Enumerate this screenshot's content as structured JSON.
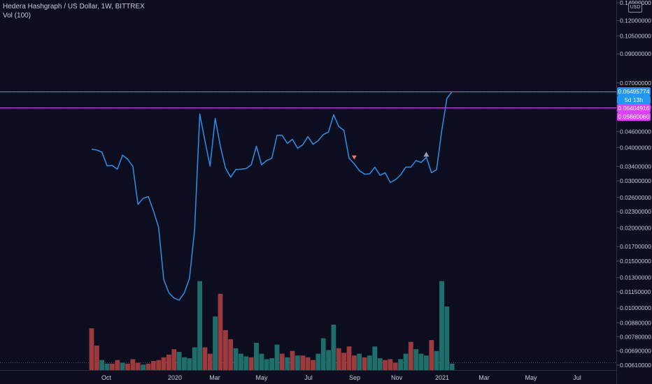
{
  "header": {
    "symbol_line": "Hedera Hashgraph / US Dollar, 1W, BITTREX",
    "volume_line": "Vol (100)",
    "currency_badge": "USD"
  },
  "chart_data": {
    "type": "line",
    "title": "Hedera Hashgraph / US Dollar, 1W, BITTREX",
    "price_axis_ticks": [
      0.14,
      0.12,
      0.105,
      0.09,
      0.07,
      0.064,
      0.0566,
      0.046,
      0.04,
      0.034,
      0.03,
      0.026,
      0.023,
      0.02,
      0.017,
      0.015,
      0.013,
      0.0115,
      0.01,
      0.0088,
      0.0078,
      0.0069,
      0.0061
    ],
    "price_axis_labels": [
      "0.14000000",
      "0.12000000",
      "0.10500000",
      "0.09000000",
      "0.07000000",
      "0.06",
      "0.05660060",
      "0.04600000",
      "0.04000000",
      "0.03400000",
      "0.03000000",
      "0.02600000",
      "0.02300000",
      "0.02000000",
      "0.01700000",
      "0.01500000",
      "0.01300000",
      "0.01150000",
      "0.01000000",
      "0.00880000",
      "0.00780000",
      "0.00690000",
      "0.00610000"
    ],
    "time_axis_labels": [
      "Oct",
      "2020",
      "Mar",
      "May",
      "Jul",
      "Sep",
      "Nov",
      "2021",
      "Mar",
      "May",
      "Jul"
    ],
    "price_labels": [
      {
        "text": "0.06495774",
        "value": 0.06495774,
        "color": "#2196f3"
      },
      {
        "text": "5d 13h",
        "value": 0.0615,
        "color": "#2196f3"
      },
      {
        "text": "0.06404916",
        "value": 0.06404916,
        "color": "#e040fb"
      },
      {
        "text": "0.05660060",
        "value": 0.0566006,
        "color": "#e040fb"
      }
    ],
    "horizontal_lines": [
      {
        "value": 0.06495774,
        "color": "#e040fb"
      },
      {
        "value": 0.0566006,
        "color": "#e040fb"
      }
    ],
    "series": [
      {
        "values": [
          0.0395,
          0.0392,
          0.0385,
          0.0342,
          0.0343,
          0.0332,
          0.0375,
          0.0362,
          0.034,
          0.0245,
          0.0258,
          0.0262,
          0.0232,
          0.0201,
          0.0128,
          0.0114,
          0.0109,
          0.0107,
          0.0114,
          0.0129,
          0.0197,
          0.0535,
          0.0425,
          0.0341,
          0.0515,
          0.0405,
          0.0335,
          0.031,
          0.0331,
          0.0332,
          0.0334,
          0.0345,
          0.0405,
          0.0345,
          0.0358,
          0.0365,
          0.0445,
          0.0445,
          0.0415,
          0.043,
          0.0398,
          0.041,
          0.044,
          0.0412,
          0.0425,
          0.0448,
          0.0458,
          0.0532,
          0.048,
          0.0465,
          0.0365,
          0.0348,
          0.0328,
          0.0318,
          0.0319,
          0.0338,
          0.0315,
          0.0322,
          0.0296,
          0.0303,
          0.0316,
          0.0338,
          0.0338,
          0.0358,
          0.0352,
          0.0368,
          0.0322,
          0.0331,
          0.0465,
          0.0612,
          0.06496
        ]
      }
    ],
    "volume_bars": [
      {
        "value": 46,
        "direction": "down"
      },
      {
        "value": 27,
        "direction": "down"
      },
      {
        "value": 11,
        "direction": "up"
      },
      {
        "value": 7,
        "direction": "up"
      },
      {
        "value": 7,
        "direction": "down"
      },
      {
        "value": 11,
        "direction": "down"
      },
      {
        "value": 8,
        "direction": "up"
      },
      {
        "value": 7,
        "direction": "down"
      },
      {
        "value": 12,
        "direction": "down"
      },
      {
        "value": 8,
        "direction": "down"
      },
      {
        "value": 6,
        "direction": "up"
      },
      {
        "value": 7,
        "direction": "down"
      },
      {
        "value": 10,
        "direction": "down"
      },
      {
        "value": 11,
        "direction": "down"
      },
      {
        "value": 14,
        "direction": "down"
      },
      {
        "value": 17,
        "direction": "down"
      },
      {
        "value": 23,
        "direction": "down"
      },
      {
        "value": 20,
        "direction": "up"
      },
      {
        "value": 14,
        "direction": "up"
      },
      {
        "value": 13,
        "direction": "up"
      },
      {
        "value": 25,
        "direction": "up"
      },
      {
        "value": 98,
        "direction": "up"
      },
      {
        "value": 25,
        "direction": "down"
      },
      {
        "value": 18,
        "direction": "down"
      },
      {
        "value": 59,
        "direction": "up"
      },
      {
        "value": 84,
        "direction": "down"
      },
      {
        "value": 44,
        "direction": "down"
      },
      {
        "value": 34,
        "direction": "down"
      },
      {
        "value": 24,
        "direction": "up"
      },
      {
        "value": 18,
        "direction": "up"
      },
      {
        "value": 15,
        "direction": "up"
      },
      {
        "value": 14,
        "direction": "down"
      },
      {
        "value": 30,
        "direction": "up"
      },
      {
        "value": 18,
        "direction": "up"
      },
      {
        "value": 12,
        "direction": "up"
      },
      {
        "value": 13,
        "direction": "up"
      },
      {
        "value": 28,
        "direction": "up"
      },
      {
        "value": 18,
        "direction": "down"
      },
      {
        "value": 14,
        "direction": "up"
      },
      {
        "value": 21,
        "direction": "down"
      },
      {
        "value": 16,
        "direction": "up"
      },
      {
        "value": 16,
        "direction": "down"
      },
      {
        "value": 14,
        "direction": "down"
      },
      {
        "value": 11,
        "direction": "down"
      },
      {
        "value": 18,
        "direction": "up"
      },
      {
        "value": 35,
        "direction": "up"
      },
      {
        "value": 22,
        "direction": "up"
      },
      {
        "value": 50,
        "direction": "up"
      },
      {
        "value": 24,
        "direction": "down"
      },
      {
        "value": 19,
        "direction": "down"
      },
      {
        "value": 26,
        "direction": "down"
      },
      {
        "value": 16,
        "direction": "down"
      },
      {
        "value": 18,
        "direction": "up"
      },
      {
        "value": 14,
        "direction": "down"
      },
      {
        "value": 16,
        "direction": "up"
      },
      {
        "value": 26,
        "direction": "up"
      },
      {
        "value": 13,
        "direction": "up"
      },
      {
        "value": 11,
        "direction": "down"
      },
      {
        "value": 12,
        "direction": "down"
      },
      {
        "value": 8,
        "direction": "down"
      },
      {
        "value": 12,
        "direction": "up"
      },
      {
        "value": 18,
        "direction": "up"
      },
      {
        "value": 31,
        "direction": "down"
      },
      {
        "value": 23,
        "direction": "up"
      },
      {
        "value": 18,
        "direction": "up"
      },
      {
        "value": 16,
        "direction": "up"
      },
      {
        "value": 33,
        "direction": "down"
      },
      {
        "value": 21,
        "direction": "up"
      },
      {
        "value": 98,
        "direction": "up"
      },
      {
        "value": 70,
        "direction": "up"
      },
      {
        "value": 7,
        "direction": "up"
      }
    ],
    "markers": [
      {
        "index": 51,
        "shape": "triangle-down",
        "color": "#e4796a"
      },
      {
        "index": 65,
        "shape": "triangle-up",
        "color": "#9aa0b0"
      }
    ],
    "colors": {
      "background": "#0c0e1f",
      "line": "#2f8fe8",
      "volume_up": "#1e6f6b",
      "volume_down": "#9c3a3d",
      "axis_text": "#c7cad6",
      "horizontal_line": "#e040fb"
    },
    "grid": false,
    "legend": "none"
  }
}
